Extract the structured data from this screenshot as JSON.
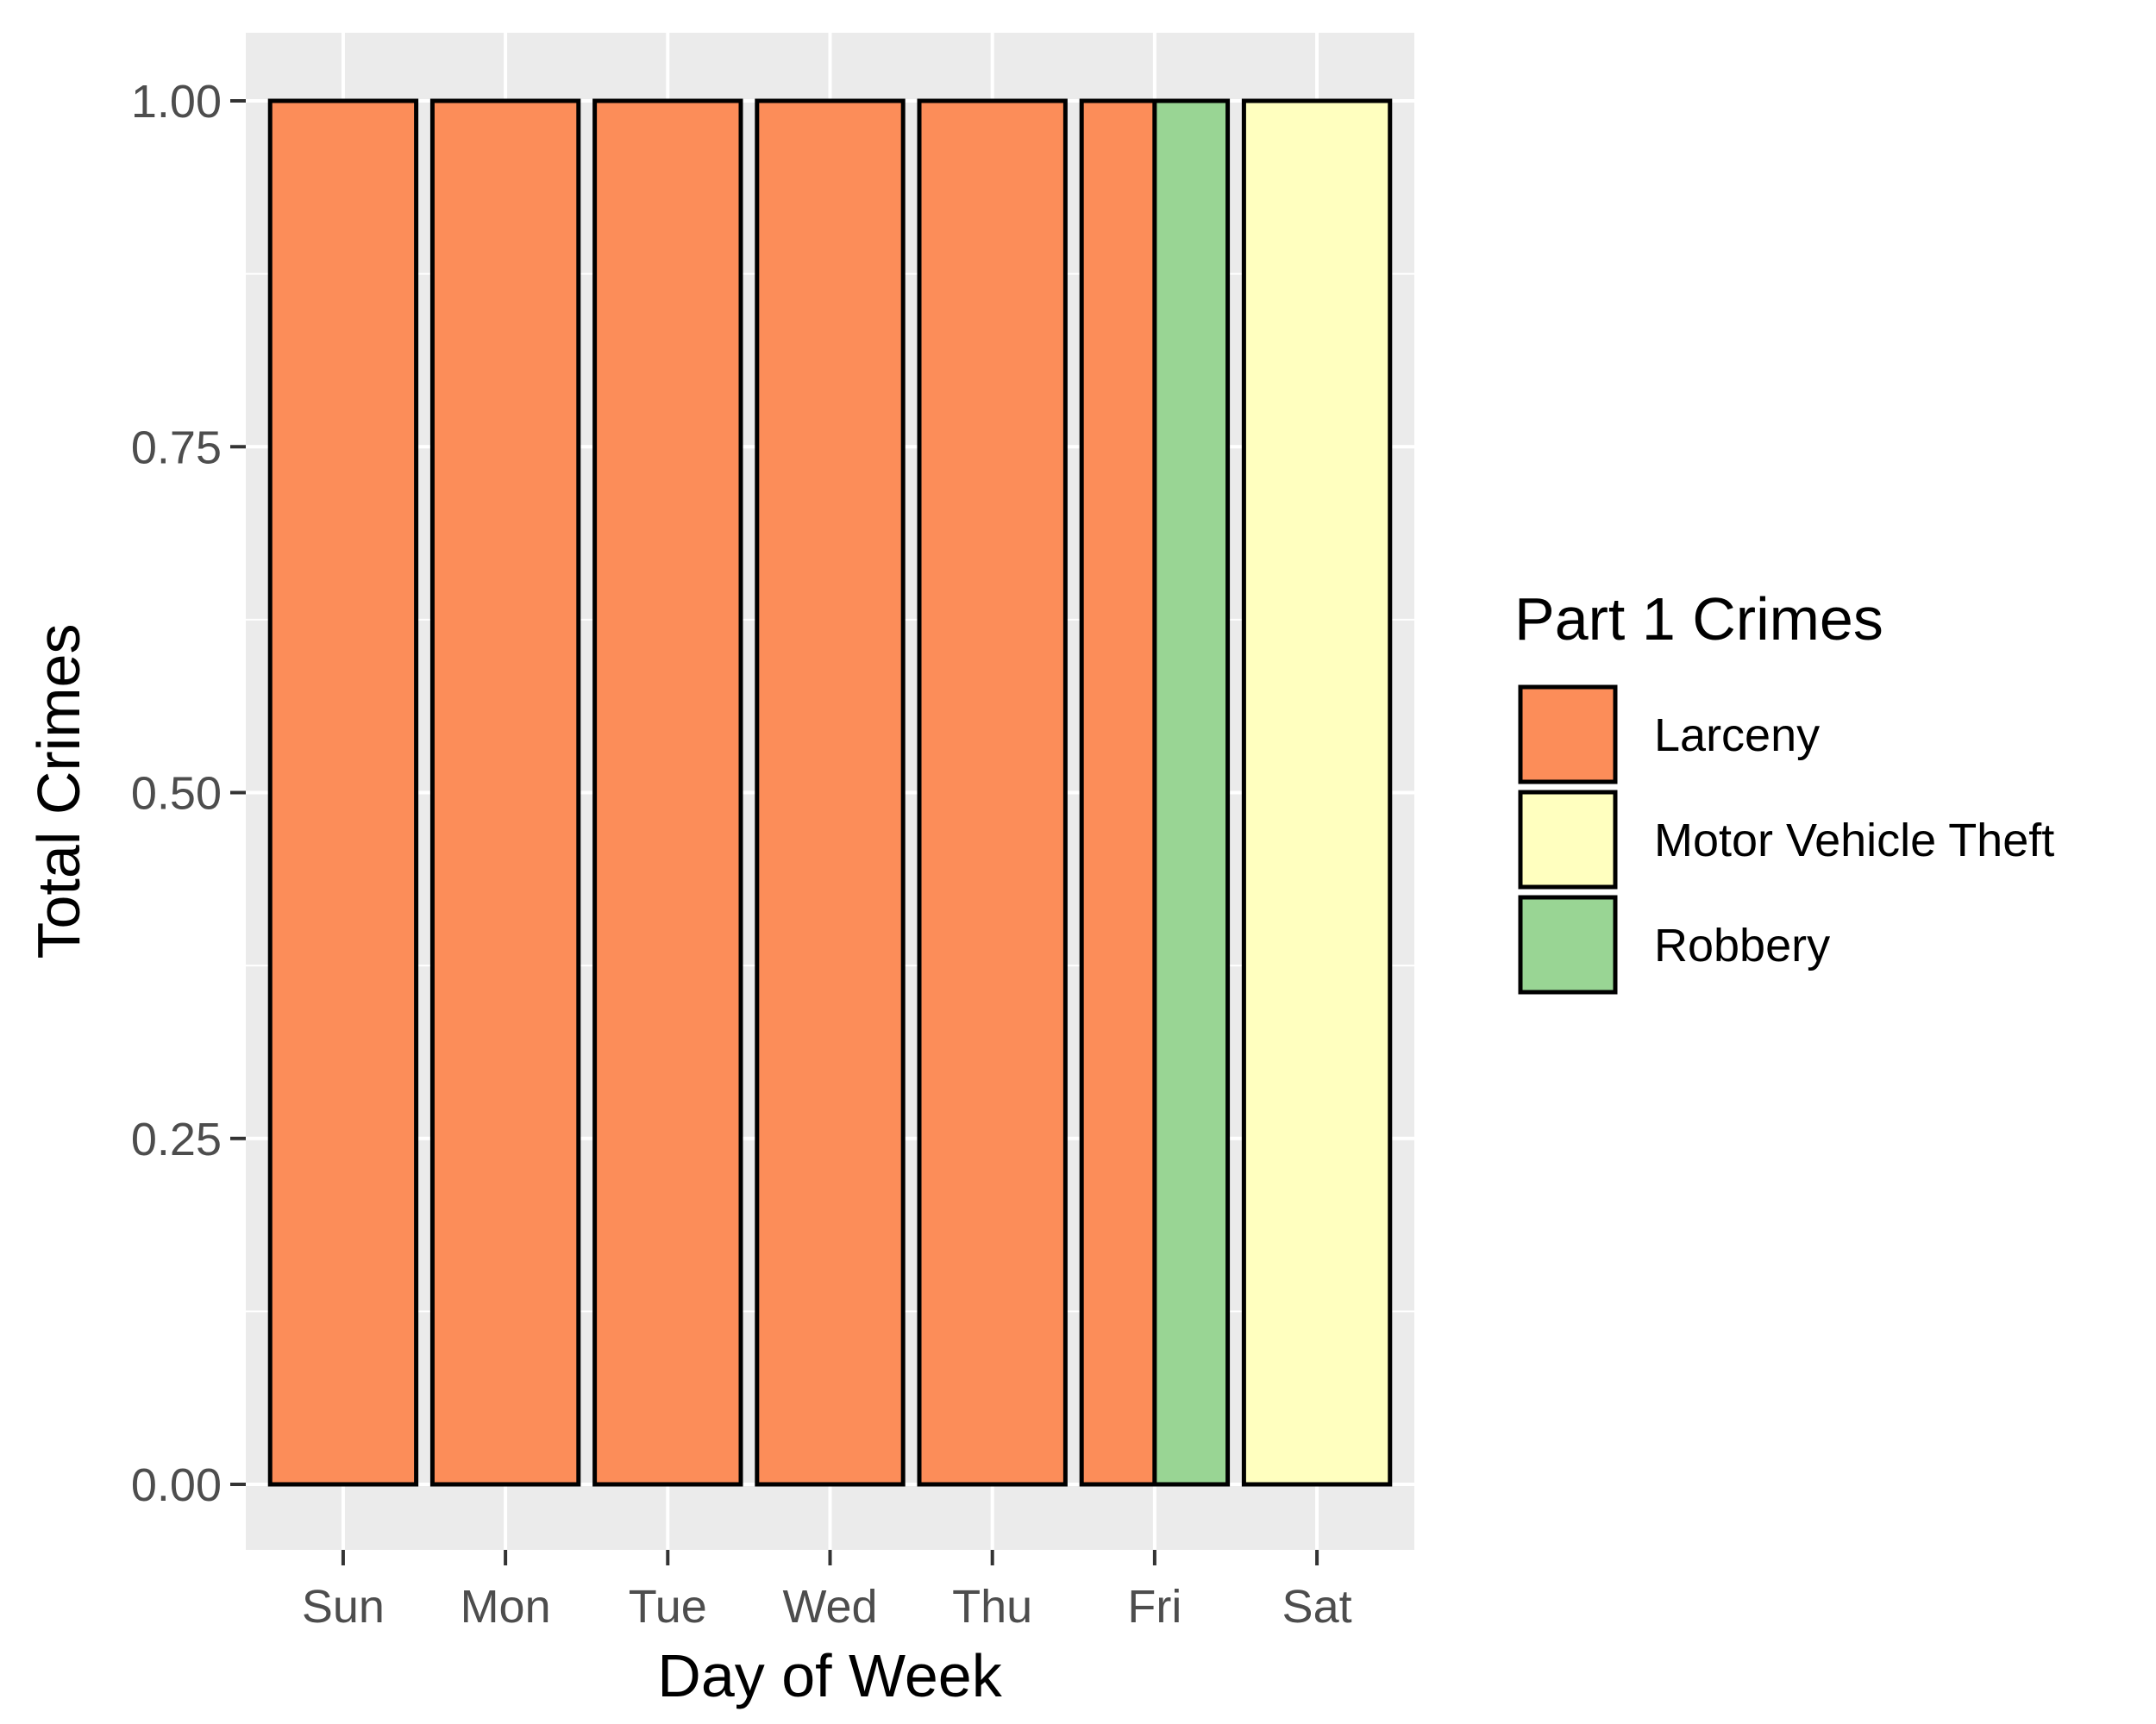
{
  "chart_data": {
    "type": "bar",
    "stacking": "dodge",
    "xlabel": "Day of Week",
    "ylabel": "Total Crimes",
    "ylim": [
      0,
      1.05
    ],
    "yticks": [
      "0.00",
      "0.25",
      "0.50",
      "0.75",
      "1.00"
    ],
    "categories": [
      "Sun",
      "Mon",
      "Tue",
      "Wed",
      "Thu",
      "Fri",
      "Sat"
    ],
    "series": [
      {
        "name": "Larceny",
        "color": "#fc8d59",
        "values": [
          1,
          1,
          1,
          1,
          1,
          1,
          0
        ]
      },
      {
        "name": "Motor Vehicle Theft",
        "color": "#ffffbf",
        "values": [
          0,
          0,
          0,
          0,
          0,
          0,
          1
        ]
      },
      {
        "name": "Robbery",
        "color": "#99d594",
        "values": [
          0,
          0,
          0,
          0,
          0,
          1,
          0
        ]
      }
    ],
    "legend": {
      "title": "Part 1 Crimes",
      "placement": "right",
      "items": [
        "Larceny",
        "Motor Vehicle Theft",
        "Robbery"
      ]
    },
    "grid": true,
    "panel_color": "#ebebeb"
  }
}
